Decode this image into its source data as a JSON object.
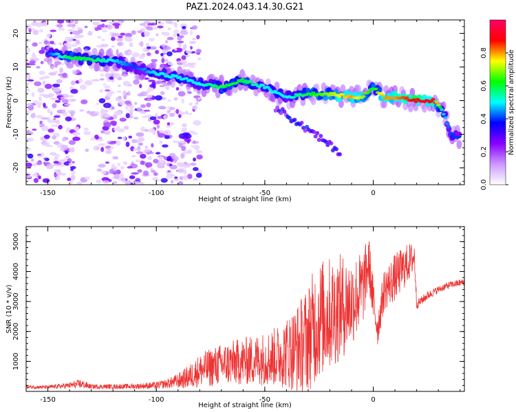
{
  "title": "PAZ1.2024.043.14.30.G21",
  "chart_data": [
    {
      "type": "heatmap",
      "xlabel": "Height of straight line (km)",
      "ylabel": "Frequency (Hz)",
      "xlim": [
        -160,
        42
      ],
      "ylim": [
        -25,
        24
      ],
      "xticks": [
        -150,
        -100,
        -50,
        0
      ],
      "yticks": [
        20,
        10,
        0,
        -10,
        -20
      ],
      "colorbar": {
        "label": "Normalized spectral amplitude",
        "range": [
          0,
          1
        ],
        "ticks": [
          "0.0",
          "0.2",
          "0.4",
          "0.6",
          "0.8"
        ],
        "colors": [
          "#ffffff",
          "#cc99ff",
          "#8800ff",
          "#0000ff",
          "#00ffff",
          "#00ff00",
          "#ffff00",
          "#ff0000",
          "#ff0066"
        ]
      },
      "ridge": {
        "x": [
          -150,
          -140,
          -130,
          -120,
          -110,
          -100,
          -90,
          -80,
          -70,
          -60,
          -50,
          -40,
          -30,
          -20,
          -10,
          -5,
          0,
          5,
          10,
          20,
          28,
          32,
          36,
          40
        ],
        "y": [
          14,
          13,
          12,
          12,
          10,
          8,
          7,
          5,
          4,
          6,
          4,
          1,
          2,
          2,
          1,
          1,
          4,
          1,
          1,
          0,
          0,
          -3,
          -10,
          -11
        ],
        "amplitude": [
          0.4,
          0.6,
          0.6,
          0.5,
          0.4,
          0.5,
          0.5,
          0.5,
          0.6,
          0.6,
          0.5,
          0.5,
          0.6,
          0.7,
          0.8,
          0.7,
          0.6,
          0.8,
          0.8,
          0.9,
          0.9,
          0.5,
          0.4,
          0.4
        ]
      }
    },
    {
      "type": "line",
      "xlabel": "Height of straight line (km)",
      "ylabel": "SNR (10 * v/v)",
      "xlim": [
        -160,
        42
      ],
      "ylim": [
        0,
        5500
      ],
      "xticks": [
        -150,
        -100,
        -50,
        0
      ],
      "yticks": [
        1000,
        2000,
        3000,
        4000,
        5000
      ],
      "color": "#ee3333",
      "x": [
        -160,
        -150,
        -140,
        -135,
        -130,
        -120,
        -110,
        -100,
        -95,
        -90,
        -85,
        -80,
        -75,
        -70,
        -65,
        -60,
        -55,
        -50,
        -45,
        -40,
        -35,
        -30,
        -27,
        -25,
        -20,
        -15,
        -10,
        -5,
        -2,
        0,
        2,
        5,
        10,
        15,
        19,
        20,
        25,
        30,
        35,
        42
      ],
      "y": [
        150,
        140,
        200,
        250,
        160,
        160,
        170,
        200,
        260,
        350,
        480,
        700,
        800,
        900,
        950,
        1000,
        1050,
        1100,
        1150,
        1300,
        1450,
        1800,
        2200,
        2400,
        2600,
        2800,
        3000,
        3400,
        4300,
        3000,
        2100,
        3400,
        3800,
        4200,
        4500,
        2900,
        3200,
        3400,
        3550,
        3650
      ],
      "spread": [
        60,
        60,
        100,
        160,
        80,
        80,
        90,
        120,
        160,
        250,
        400,
        550,
        650,
        700,
        750,
        800,
        850,
        900,
        1000,
        1200,
        1500,
        1800,
        2000,
        2000,
        1900,
        1800,
        1500,
        1300,
        900,
        800,
        600,
        700,
        800,
        700,
        500,
        150,
        150,
        120,
        120,
        120
      ]
    }
  ]
}
